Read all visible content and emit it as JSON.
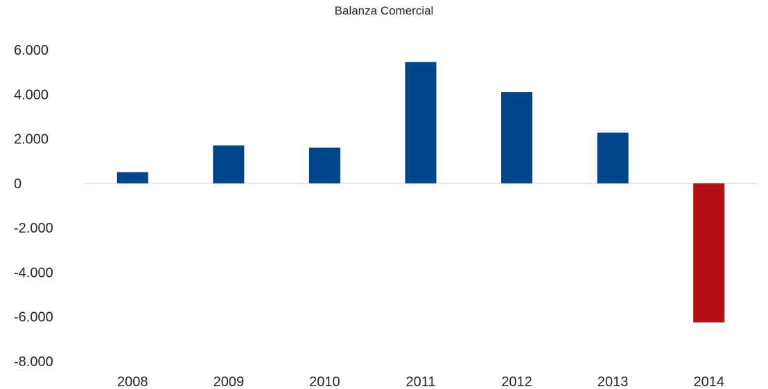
{
  "chart_data": {
    "type": "bar",
    "title": "Balanza Comercial",
    "xlabel": "",
    "ylabel": "",
    "categories": [
      "2008",
      "2009",
      "2010",
      "2011",
      "2012",
      "2013",
      "2014"
    ],
    "values": [
      500,
      1700,
      1600,
      5450,
      4100,
      2280,
      -6250
    ],
    "ylim": [
      -8000,
      6000
    ],
    "yticks": [
      6000,
      4000,
      2000,
      0,
      -2000,
      -4000,
      -6000,
      -8000
    ],
    "ytick_labels": [
      "6.000",
      "4.000",
      "2.000",
      "0",
      "-2.000",
      "-4.000",
      "-6.000",
      "-8.000"
    ],
    "grid": false,
    "legend": "none",
    "colors": {
      "positive": "#00468b",
      "negative": "#b30f14",
      "axis": "#d9d9d9"
    }
  }
}
